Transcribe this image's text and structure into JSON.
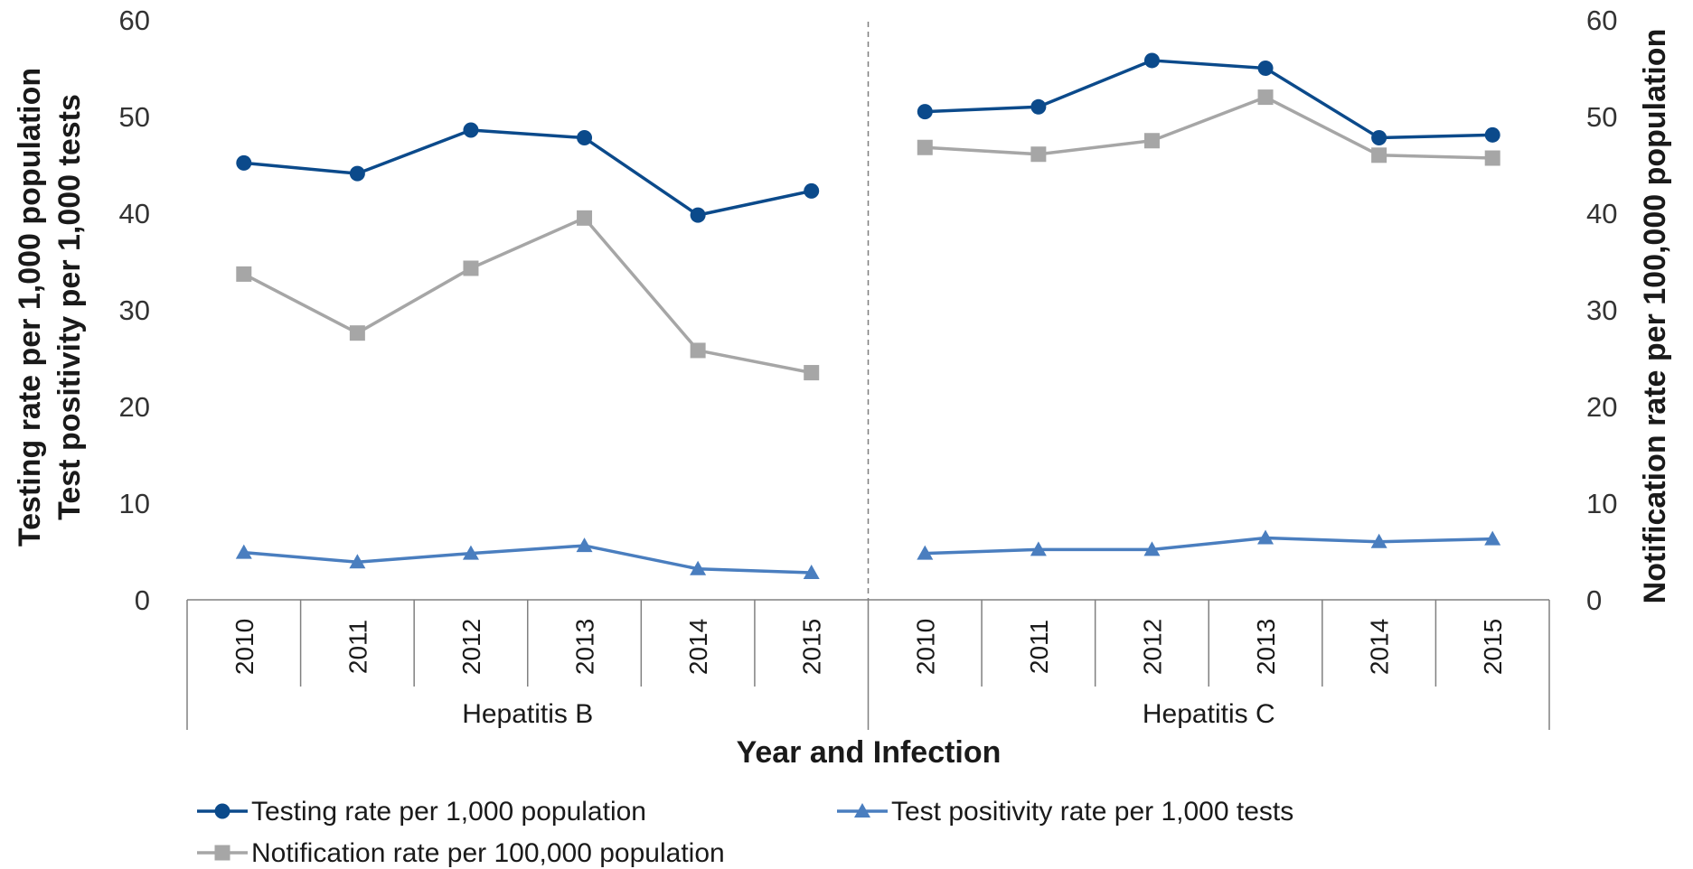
{
  "chart_data": {
    "type": "line",
    "xlabel": "Year and Infection",
    "ylabel_left_line1": "Testing rate per 1,000 population",
    "ylabel_left_line2": "Test positivity per 1,000 tests",
    "ylabel_right": "Notification rate per 100,000 population",
    "ylim": [
      0,
      60
    ],
    "yticks": [
      "0",
      "10",
      "20",
      "30",
      "40",
      "50",
      "60"
    ],
    "yticks_right": [
      "0",
      "10",
      "20",
      "30",
      "40",
      "50",
      "60"
    ],
    "groups": [
      {
        "name": "Hepatitis B",
        "categories": [
          "2010",
          "2011",
          "2012",
          "2013",
          "2014",
          "2015"
        ]
      },
      {
        "name": "Hepatitis C",
        "categories": [
          "2010",
          "2011",
          "2012",
          "2013",
          "2014",
          "2015"
        ]
      }
    ],
    "series": [
      {
        "name": "Testing rate per 1,000 population",
        "color": "#0b4a8b",
        "marker": "circle",
        "axis": "left",
        "values": [
          [
            45.2,
            44.1,
            48.6,
            47.8,
            39.8,
            42.3
          ],
          [
            50.5,
            51.0,
            55.8,
            55.0,
            47.8,
            48.1
          ]
        ]
      },
      {
        "name": "Test positivity rate per 1,000 tests",
        "color": "#4a7ebf",
        "marker": "triangle",
        "axis": "left",
        "values": [
          [
            4.9,
            3.9,
            4.8,
            5.6,
            3.2,
            2.8
          ],
          [
            4.8,
            5.2,
            5.2,
            6.4,
            6.0,
            6.3
          ]
        ]
      },
      {
        "name": "Notification rate per 100,000 population",
        "color": "#a6a6a6",
        "marker": "square",
        "axis": "right",
        "values": [
          [
            33.7,
            27.6,
            34.3,
            39.5,
            25.8,
            23.5
          ],
          [
            46.8,
            46.1,
            47.5,
            52.0,
            46.0,
            45.7
          ]
        ]
      }
    ],
    "grid": false,
    "legend_position": "bottom"
  }
}
